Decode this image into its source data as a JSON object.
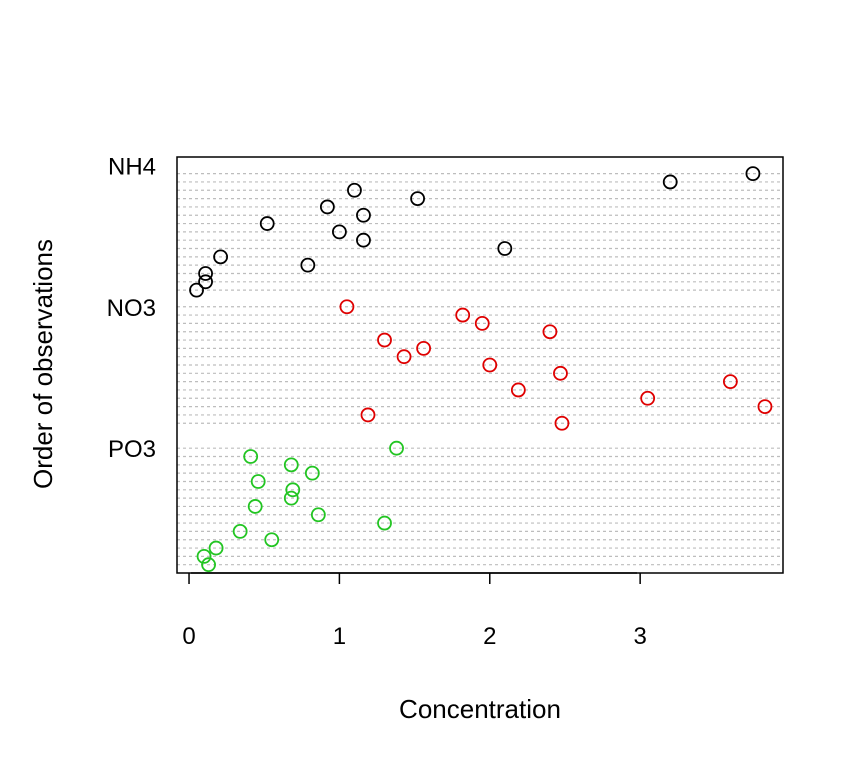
{
  "chart_data": {
    "type": "scatter",
    "title": "",
    "xlabel": "Concentration",
    "ylabel": "Order of observations",
    "xlim": [
      -0.08,
      3.95
    ],
    "x_ticks": [
      "0",
      "1",
      "2",
      "3"
    ],
    "x_tick_values": [
      0,
      1,
      2,
      3
    ],
    "grid": true,
    "series": [
      {
        "name": "NH4",
        "color": "#000000",
        "points": [
          {
            "x": 3.75,
            "y": 50
          },
          {
            "x": 3.2,
            "y": 49
          },
          {
            "x": 1.1,
            "y": 48
          },
          {
            "x": 1.52,
            "y": 47
          },
          {
            "x": 0.92,
            "y": 46
          },
          {
            "x": 1.16,
            "y": 45
          },
          {
            "x": 0.52,
            "y": 44
          },
          {
            "x": 1.0,
            "y": 43
          },
          {
            "x": 1.16,
            "y": 42
          },
          {
            "x": 2.1,
            "y": 41
          },
          {
            "x": 0.21,
            "y": 40
          },
          {
            "x": 0.79,
            "y": 39
          },
          {
            "x": 0.11,
            "y": 38
          },
          {
            "x": 0.11,
            "y": 37
          },
          {
            "x": 0.05,
            "y": 36
          }
        ]
      },
      {
        "name": "NO3",
        "color": "#df0000",
        "points": [
          {
            "x": 1.05,
            "y": 34
          },
          {
            "x": 1.82,
            "y": 33
          },
          {
            "x": 1.95,
            "y": 32
          },
          {
            "x": 2.4,
            "y": 31
          },
          {
            "x": 1.3,
            "y": 30
          },
          {
            "x": 1.56,
            "y": 29
          },
          {
            "x": 1.43,
            "y": 28
          },
          {
            "x": 2.0,
            "y": 27
          },
          {
            "x": 2.47,
            "y": 26
          },
          {
            "x": 3.6,
            "y": 25
          },
          {
            "x": 2.19,
            "y": 24
          },
          {
            "x": 3.05,
            "y": 23
          },
          {
            "x": 3.83,
            "y": 22
          },
          {
            "x": 1.19,
            "y": 21
          },
          {
            "x": 2.48,
            "y": 20
          }
        ]
      },
      {
        "name": "PO3",
        "color": "#22c522",
        "points": [
          {
            "x": 1.38,
            "y": 17
          },
          {
            "x": 0.41,
            "y": 16
          },
          {
            "x": 0.68,
            "y": 15
          },
          {
            "x": 0.82,
            "y": 14
          },
          {
            "x": 0.46,
            "y": 13
          },
          {
            "x": 0.69,
            "y": 12
          },
          {
            "x": 0.68,
            "y": 11
          },
          {
            "x": 0.44,
            "y": 10
          },
          {
            "x": 0.86,
            "y": 9
          },
          {
            "x": 1.3,
            "y": 8
          },
          {
            "x": 0.34,
            "y": 7
          },
          {
            "x": 0.55,
            "y": 6
          },
          {
            "x": 0.18,
            "y": 5
          },
          {
            "x": 0.1,
            "y": 4
          },
          {
            "x": 0.13,
            "y": 3
          }
        ]
      }
    ],
    "group_labels": [
      {
        "label": "NH4",
        "y": 51
      },
      {
        "label": "NO3",
        "y": 34
      },
      {
        "label": "PO3",
        "y": 17
      }
    ],
    "ylim": [
      2,
      52
    ]
  }
}
